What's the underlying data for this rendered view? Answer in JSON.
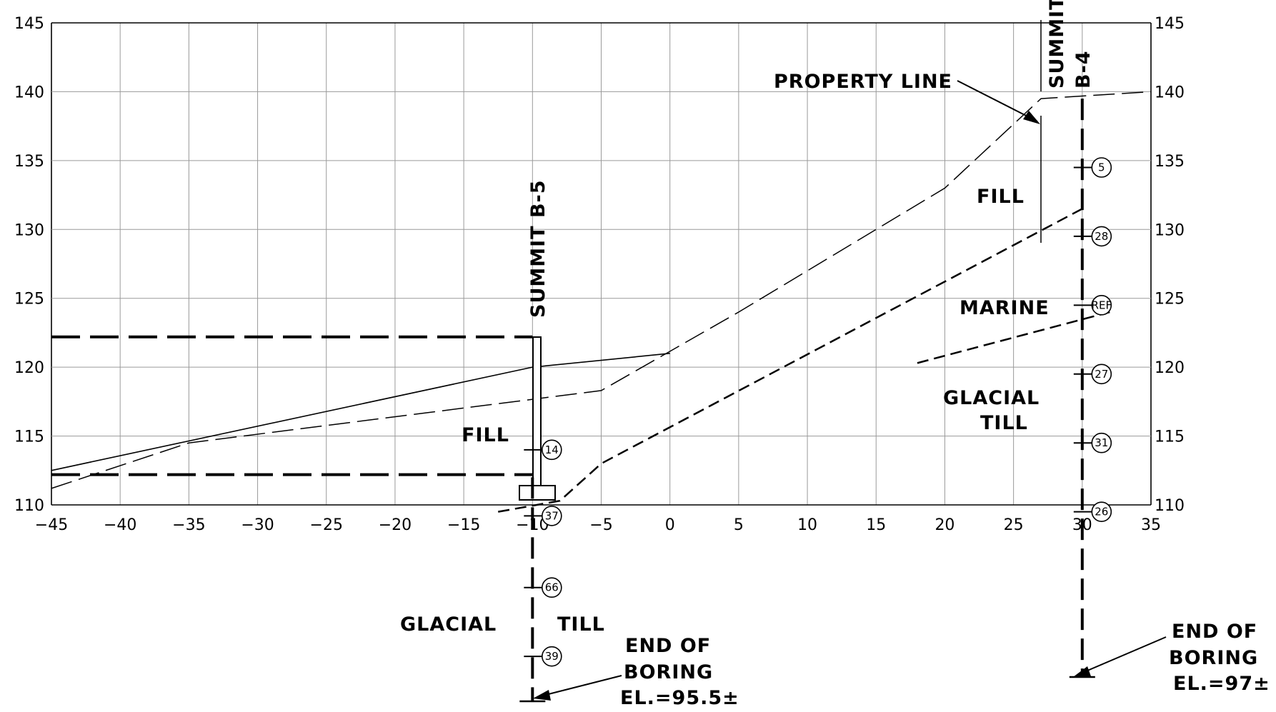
{
  "chart_data": {
    "type": "diagram",
    "x_ticks": [
      "−45",
      "−40",
      "−35",
      "−30",
      "−25",
      "−20",
      "−15",
      "−10",
      "−5",
      "0",
      "5",
      "10",
      "15",
      "20",
      "25",
      "30",
      "35"
    ],
    "y_ticks": [
      "145",
      "140",
      "135",
      "130",
      "125",
      "120",
      "115",
      "110"
    ],
    "x_range": [
      -45,
      35
    ],
    "y_range": [
      110,
      145
    ],
    "grid": true,
    "lines": {
      "existing_ground": [
        [
          -45,
          112.5
        ],
        [
          -10,
          120
        ],
        [
          0,
          121
        ]
      ],
      "proposed_grade": [
        [
          -45,
          111.2
        ],
        [
          -35,
          114.5
        ],
        [
          -5,
          118.3
        ],
        [
          5,
          124
        ],
        [
          20,
          133
        ],
        [
          27,
          139.5
        ],
        [
          35,
          140
        ]
      ],
      "b5_dashed_top_y": 122.2,
      "b5_dashed_bottom_y": 112.2,
      "lower_strata": [
        [
          -12.5,
          109.5
        ],
        [
          -8,
          110.3
        ],
        [
          -5,
          113
        ],
        [
          30,
          131.5
        ]
      ],
      "marine_till_boundary": [
        [
          18,
          120.3
        ],
        [
          32,
          124
        ]
      ]
    },
    "borings": [
      {
        "name": "SUMMIT B-5",
        "x": -10,
        "blows": [
          {
            "elev": 114,
            "value": "14"
          },
          {
            "elev": 109.2,
            "value": "37"
          },
          {
            "elev": 104,
            "value": "66"
          },
          {
            "elev": 99,
            "value": "39"
          }
        ]
      },
      {
        "name": "SUMMIT B-4",
        "x": 30,
        "blows": [
          {
            "elev": 134.5,
            "value": "5"
          },
          {
            "elev": 129.5,
            "value": "28"
          },
          {
            "elev": 124.5,
            "value": "REF"
          },
          {
            "elev": 119.5,
            "value": "27"
          },
          {
            "elev": 114.5,
            "value": "31"
          },
          {
            "elev": 109.5,
            "value": "26"
          }
        ]
      }
    ]
  },
  "labels": {
    "summit_b5": "SUMMIT B-5",
    "summit_b4_line1": "SUMMIT",
    "summit_b4_line2": "B-4",
    "property_line": "PROPERTY LINE",
    "fill_right": "FILL",
    "fill_left": "FILL",
    "marine": "MARINE",
    "glacial_right": "GLACIAL",
    "till_right": "TILL",
    "glacial_left": "GLACIAL",
    "till_left": "TILL",
    "end_of_left": "END OF",
    "boring_left": "BORING",
    "el_left": "EL.=95.5±",
    "end_of_right": "END OF",
    "boring_right": "BORING",
    "el_right": "EL.=97±"
  }
}
